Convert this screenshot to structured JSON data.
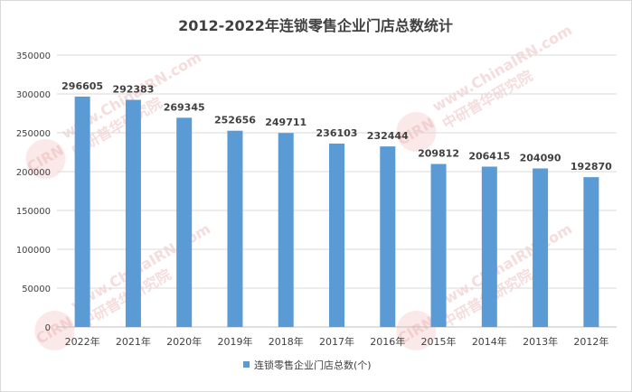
{
  "chart_data": {
    "type": "bar",
    "title": "2012-2022年连锁零售企业门店总数统计",
    "categories": [
      "2022年",
      "2021年",
      "2020年",
      "2019年",
      "2018年",
      "2017年",
      "2016年",
      "2015年",
      "2014年",
      "2013年",
      "2012年"
    ],
    "series": [
      {
        "name": "连锁零售企业门店总数(个)",
        "values": [
          296605,
          292383,
          269345,
          252656,
          249711,
          236103,
          232444,
          209812,
          206415,
          204090,
          192870
        ],
        "color": "#5b9bd5"
      }
    ],
    "ylim": [
      0,
      350000
    ],
    "yticks": [
      0,
      50000,
      100000,
      150000,
      200000,
      250000,
      300000,
      350000
    ],
    "grid": true,
    "legend_position": "bottom"
  },
  "watermark": {
    "text": "中研普华研究院",
    "url_text": "www.ChinaIRN.com",
    "logo_text": "CIRN",
    "color": "#e06060"
  }
}
